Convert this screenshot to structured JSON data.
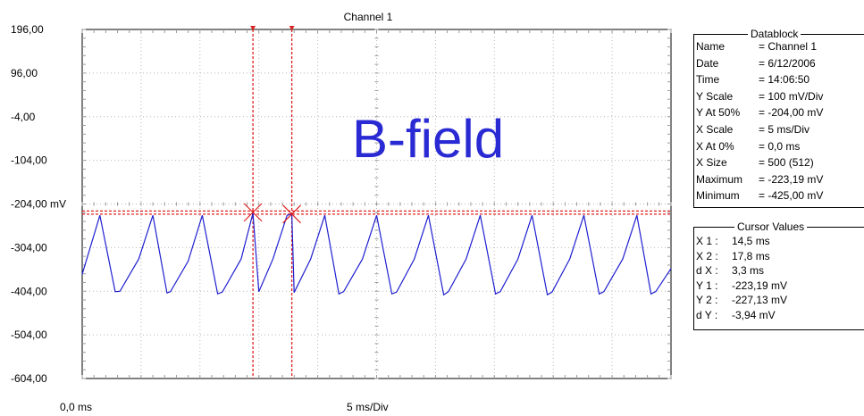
{
  "chart_data": {
    "type": "line",
    "title": "Channel 1",
    "overlay_label": "B-field",
    "xlabel": "5 ms/Div",
    "x_start_label": "0,0 ms",
    "xlim_ms": [
      0,
      50
    ],
    "ylim_mV": [
      -604,
      196
    ],
    "y_ticks": [
      "196,00",
      "96,00",
      "-4,00",
      "-104,00",
      "-204,00 mV",
      "-304,00",
      "-404,00",
      "-504,00",
      "-604,00"
    ],
    "grid": true,
    "series": [
      {
        "color": "#0000cc",
        "x_ms": [
          0,
          1.5,
          2.8,
          3.2,
          4.8,
          6.0,
          7.2,
          7.5,
          9.0,
          10.2,
          11.5,
          11.9,
          13.5,
          14.5,
          15.0,
          16.2,
          17.4,
          17.8,
          18.0,
          19.4,
          20.6,
          21.8,
          22.2,
          23.8,
          25.0,
          26.3,
          26.7,
          28.2,
          29.4,
          30.7,
          31.1,
          32.6,
          33.8,
          35.1,
          35.5,
          37.0,
          38.2,
          39.5,
          39.9,
          41.4,
          42.6,
          43.9,
          44.3,
          45.9,
          47.1,
          48.3,
          48.7,
          50.0
        ],
        "y_mV": [
          -365,
          -230,
          -405,
          -404,
          -330,
          -230,
          -408,
          -405,
          -335,
          -230,
          -410,
          -406,
          -330,
          -225,
          -405,
          -330,
          -230,
          -227,
          -407,
          -330,
          -230,
          -410,
          -405,
          -330,
          -230,
          -410,
          -406,
          -330,
          -230,
          -412,
          -405,
          -330,
          -230,
          -410,
          -405,
          -330,
          -230,
          -412,
          -406,
          -330,
          -230,
          -410,
          -405,
          -330,
          -230,
          -410,
          -405,
          -352
        ]
      }
    ],
    "reference_level_mV": -223.19,
    "cursors": [
      {
        "name": "X1",
        "x_ms": 14.5,
        "y_mV": -223.19
      },
      {
        "name": "X2",
        "x_ms": 17.8,
        "y_mV": -227.13
      }
    ]
  },
  "datablock": {
    "title": "Datablock",
    "rows": [
      {
        "key": "Name",
        "value": "= Channel 1"
      },
      {
        "key": "Date",
        "value": "= 6/12/2006"
      },
      {
        "key": "Time",
        "value": "= 14:06:50"
      },
      {
        "key": "Y Scale",
        "value": "=  100    mV/Div"
      },
      {
        "key": "Y At 50%",
        "value": "= -204,00 mV"
      },
      {
        "key": "X Scale",
        "value": "=     5    ms/Div"
      },
      {
        "key": "X At 0%",
        "value": "=     0,0  ms"
      },
      {
        "key": "X Size",
        "value": "= 500 (512)"
      },
      {
        "key": "Maximum",
        "value": "= -223,19 mV"
      },
      {
        "key": "Minimum",
        "value": "= -425,00 mV"
      }
    ]
  },
  "cursor_values": {
    "title": "Cursor Values",
    "rows": [
      {
        "key": "X 1 :",
        "value": "14,5   ms"
      },
      {
        "key": "X 2 :",
        "value": "17,8   ms"
      },
      {
        "key": "d X :",
        "value": "  3,3   ms"
      },
      {
        "key": "Y 1 :",
        "value": "-223,19 mV"
      },
      {
        "key": "Y 2 :",
        "value": "-227,13 mV"
      },
      {
        "key": "d Y :",
        "value": "   -3,94 mV"
      }
    ]
  }
}
